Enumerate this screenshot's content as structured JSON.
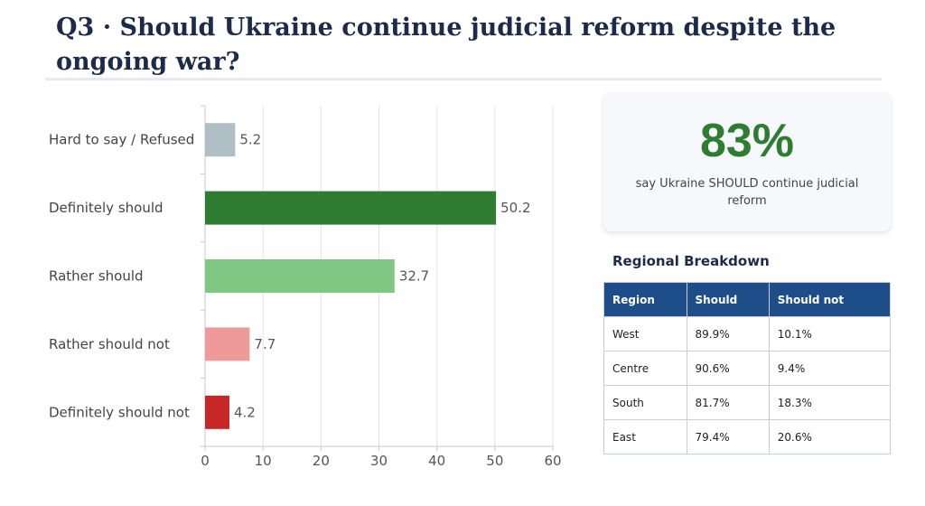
{
  "title": "Q3 · Should Ukraine continue judicial reform despite the ongoing war?",
  "colors": {
    "definitely_should": "#2e7d32",
    "rather_should": "#81c784",
    "rather_should_not": "#ef9a9a",
    "definitely_should_not": "#c62828",
    "hard_to_say": "#b0bec5",
    "accent_text": "#2e7d32",
    "table_header": "#1d4e89"
  },
  "chart_data": {
    "type": "bar",
    "orientation": "horizontal",
    "categories": [
      "Hard to say / Refused",
      "Definitely should",
      "Rather should",
      "Rather should not",
      "Definitely should not"
    ],
    "values": [
      5.2,
      50.2,
      32.7,
      7.7,
      4.2
    ],
    "bar_colors": [
      "#b0bec5",
      "#2e7d32",
      "#81c784",
      "#ef9a9a",
      "#c62828"
    ],
    "xlim": [
      0,
      60
    ],
    "xticks": [
      0,
      10,
      20,
      30,
      40,
      50,
      60
    ],
    "grid": true,
    "data_labels": true
  },
  "summary": {
    "value": "83%",
    "caption": "say Ukraine SHOULD continue judicial reform"
  },
  "regional": {
    "title": "Regional Breakdown",
    "headers": [
      "Region",
      "Should",
      "Should not"
    ],
    "rows": [
      [
        "West",
        "89.9%",
        "10.1%"
      ],
      [
        "Centre",
        "90.6%",
        "9.4%"
      ],
      [
        "South",
        "81.7%",
        "18.3%"
      ],
      [
        "East",
        "79.4%",
        "20.6%"
      ]
    ]
  }
}
